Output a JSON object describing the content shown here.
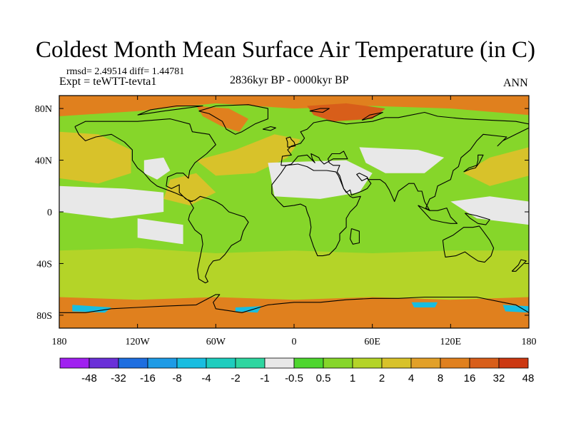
{
  "chart_data": {
    "type": "heatmap",
    "title": "Coldest Month Mean Surface Air Temperature (in C)",
    "stats_text": "rmsd= 2.49514  diff= 1.44781",
    "experiment_text": "Expt = teWTT-tevta1",
    "period_text": "2836kyr BP - 0000kyr BP",
    "season_text": "ANN",
    "x_axis": {
      "range": [
        -180,
        180
      ],
      "ticks": [
        {
          "value": -180,
          "label": "180"
        },
        {
          "value": -120,
          "label": "120W"
        },
        {
          "value": -60,
          "label": "60W"
        },
        {
          "value": 0,
          "label": "0"
        },
        {
          "value": 60,
          "label": "60E"
        },
        {
          "value": 120,
          "label": "120E"
        },
        {
          "value": 180,
          "label": "180"
        }
      ]
    },
    "y_axis": {
      "range": [
        -90,
        90
      ],
      "ticks": [
        {
          "value": 80,
          "label": "80N"
        },
        {
          "value": 40,
          "label": "40N"
        },
        {
          "value": 0,
          "label": "0"
        },
        {
          "value": -40,
          "label": "40S"
        },
        {
          "value": -80,
          "label": "80S"
        }
      ]
    },
    "colorbar": {
      "colors": [
        "#a020f0",
        "#6a30d8",
        "#1e6ee0",
        "#1e9be6",
        "#18bde0",
        "#1ecdbe",
        "#2ed6a0",
        "#e8e8e8",
        "#4ed62e",
        "#86d62a",
        "#b4d428",
        "#d8c22a",
        "#e2a028",
        "#e0801e",
        "#d85e1a",
        "#cc3812"
      ],
      "labels": [
        "-48",
        "-32",
        "-16",
        "-8",
        "-4",
        "-2",
        "-1",
        "-0.5",
        "0.5",
        "1",
        "2",
        "4",
        "8",
        "16",
        "32",
        "48"
      ]
    },
    "regions": [
      {
        "name": "tropical-mid-lat-background",
        "class_index": 9
      },
      {
        "name": "southern-ocean-band",
        "class_index": 10
      },
      {
        "name": "north-pacific-warm-patch",
        "class_index": 11
      },
      {
        "name": "north-atlantic-warm-patch",
        "class_index": 11
      },
      {
        "name": "sahara-near-zero",
        "class_index": 7
      },
      {
        "name": "central-asia-near-zero",
        "class_index": 7
      },
      {
        "name": "north-america-near-zero",
        "class_index": 7
      },
      {
        "name": "eastern-pacific-near-zero",
        "class_index": 7
      },
      {
        "name": "arctic-warm-patch",
        "class_index": 13
      },
      {
        "name": "greenland-warm-patch",
        "class_index": 13
      },
      {
        "name": "barents-sea-warm-patch",
        "class_index": 14
      },
      {
        "name": "antarctic-coast-warm-patch",
        "class_index": 13
      },
      {
        "name": "antarctic-coast-cool-patch",
        "class_index": 4
      }
    ]
  }
}
